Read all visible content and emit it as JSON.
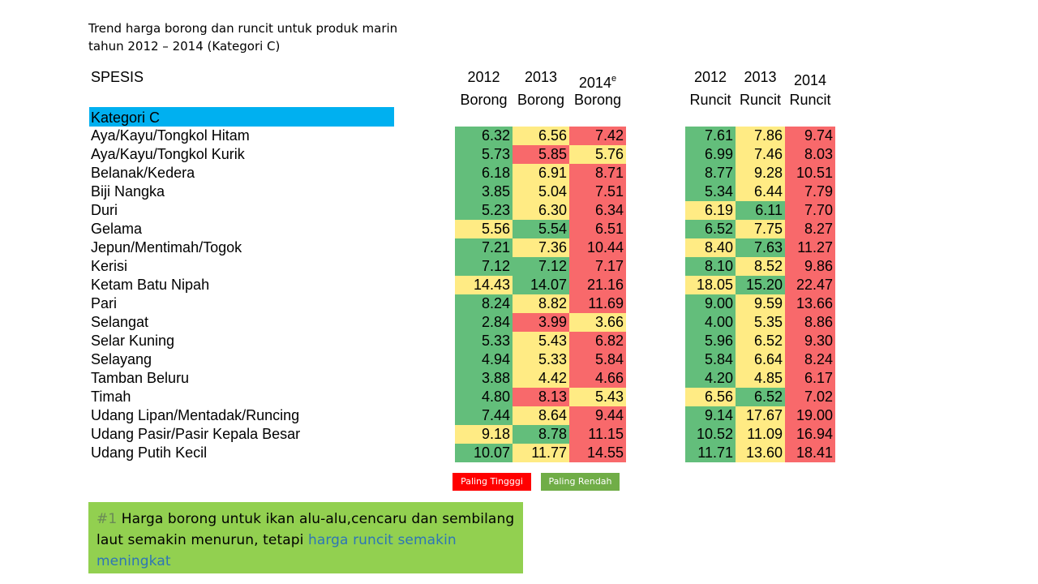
{
  "title": "Trend harga borong dan runcit untuk produk marin tahun 2012 – 2014 (Kategori C)",
  "headers": {
    "spesis": "SPESIS",
    "borong": [
      {
        "year": "2012",
        "sup": "",
        "label": "Borong"
      },
      {
        "year": "2013",
        "sup": "",
        "label": "Borong"
      },
      {
        "year": "2014",
        "sup": "e",
        "label": "Borong"
      }
    ],
    "runcit": [
      {
        "year": "2012",
        "sup": "",
        "label": "Runcit"
      },
      {
        "year": "2013",
        "sup": "",
        "label": "Runcit"
      },
      {
        "year": "2014",
        "sup": "",
        "label": "Runcit"
      }
    ]
  },
  "category": "Kategori C",
  "colors": {
    "green": "#63be7b",
    "yellow": "#ffeb84",
    "red": "#f8696b",
    "category_bar": "#00b0f0",
    "note_bg": "#92d050",
    "legend_high": "#ff0000",
    "legend_low": "#70ad47"
  },
  "rows": [
    {
      "name": "Aya/Kayu/Tongkol Hitam",
      "borong": [
        "6.32",
        "6.56",
        "7.42"
      ],
      "bc": [
        "g",
        "y",
        "r"
      ],
      "runcit": [
        "7.61",
        "7.86",
        "9.74"
      ],
      "rc": [
        "g",
        "y",
        "r"
      ]
    },
    {
      "name": "Aya/Kayu/Tongkol Kurik",
      "borong": [
        "5.73",
        "5.85",
        "5.76"
      ],
      "bc": [
        "g",
        "r",
        "y"
      ],
      "runcit": [
        "6.99",
        "7.46",
        "8.03"
      ],
      "rc": [
        "g",
        "y",
        "r"
      ]
    },
    {
      "name": "Belanak/Kedera",
      "borong": [
        "6.18",
        "6.91",
        "8.71"
      ],
      "bc": [
        "g",
        "y",
        "r"
      ],
      "runcit": [
        "8.77",
        "9.28",
        "10.51"
      ],
      "rc": [
        "g",
        "y",
        "r"
      ]
    },
    {
      "name": "Biji Nangka",
      "borong": [
        "3.85",
        "5.04",
        "7.51"
      ],
      "bc": [
        "g",
        "y",
        "r"
      ],
      "runcit": [
        "5.34",
        "6.44",
        "7.79"
      ],
      "rc": [
        "g",
        "y",
        "r"
      ]
    },
    {
      "name": "Duri",
      "borong": [
        "5.23",
        "6.30",
        "6.34"
      ],
      "bc": [
        "g",
        "y",
        "r"
      ],
      "runcit": [
        "6.19",
        "6.11",
        "7.70"
      ],
      "rc": [
        "y",
        "g",
        "r"
      ]
    },
    {
      "name": "Gelama",
      "borong": [
        "5.56",
        "5.54",
        "6.51"
      ],
      "bc": [
        "y",
        "g",
        "r"
      ],
      "runcit": [
        "6.52",
        "7.75",
        "8.27"
      ],
      "rc": [
        "g",
        "y",
        "r"
      ]
    },
    {
      "name": "Jepun/Mentimah/Togok",
      "borong": [
        "7.21",
        "7.36",
        "10.44"
      ],
      "bc": [
        "g",
        "y",
        "r"
      ],
      "runcit": [
        "8.40",
        "7.63",
        "11.27"
      ],
      "rc": [
        "y",
        "g",
        "r"
      ]
    },
    {
      "name": "Kerisi",
      "borong": [
        "7.12",
        "7.12",
        "7.17"
      ],
      "bc": [
        "g",
        "g",
        "r"
      ],
      "runcit": [
        "8.10",
        "8.52",
        "9.86"
      ],
      "rc": [
        "g",
        "y",
        "r"
      ]
    },
    {
      "name": "Ketam Batu Nipah",
      "borong": [
        "14.43",
        "14.07",
        "21.16"
      ],
      "bc": [
        "y",
        "g",
        "r"
      ],
      "runcit": [
        "18.05",
        "15.20",
        "22.47"
      ],
      "rc": [
        "y",
        "g",
        "r"
      ]
    },
    {
      "name": "Pari",
      "borong": [
        "8.24",
        "8.82",
        "11.69"
      ],
      "bc": [
        "g",
        "y",
        "r"
      ],
      "runcit": [
        "9.00",
        "9.59",
        "13.66"
      ],
      "rc": [
        "g",
        "y",
        "r"
      ]
    },
    {
      "name": "Selangat",
      "borong": [
        "2.84",
        "3.99",
        "3.66"
      ],
      "bc": [
        "g",
        "r",
        "y"
      ],
      "runcit": [
        "4.00",
        "5.35",
        "8.86"
      ],
      "rc": [
        "g",
        "y",
        "r"
      ]
    },
    {
      "name": "Selar Kuning",
      "borong": [
        "5.33",
        "5.43",
        "6.82"
      ],
      "bc": [
        "g",
        "y",
        "r"
      ],
      "runcit": [
        "5.96",
        "6.52",
        "9.30"
      ],
      "rc": [
        "g",
        "y",
        "r"
      ]
    },
    {
      "name": "Selayang",
      "borong": [
        "4.94",
        "5.33",
        "5.84"
      ],
      "bc": [
        "g",
        "y",
        "r"
      ],
      "runcit": [
        "5.84",
        "6.64",
        "8.24"
      ],
      "rc": [
        "g",
        "y",
        "r"
      ]
    },
    {
      "name": "Tamban Beluru",
      "borong": [
        "3.88",
        "4.42",
        "4.66"
      ],
      "bc": [
        "g",
        "y",
        "r"
      ],
      "runcit": [
        "4.20",
        "4.85",
        "6.17"
      ],
      "rc": [
        "g",
        "y",
        "r"
      ]
    },
    {
      "name": "Timah",
      "borong": [
        "4.80",
        "8.13",
        "5.43"
      ],
      "bc": [
        "g",
        "r",
        "y"
      ],
      "runcit": [
        "6.56",
        "6.52",
        "7.02"
      ],
      "rc": [
        "y",
        "g",
        "r"
      ]
    },
    {
      "name": "Udang Lipan/Mentadak/Runcing",
      "borong": [
        "7.44",
        "8.64",
        "9.44"
      ],
      "bc": [
        "g",
        "y",
        "r"
      ],
      "runcit": [
        "9.14",
        "17.67",
        "19.00"
      ],
      "rc": [
        "g",
        "y",
        "r"
      ]
    },
    {
      "name": "Udang Pasir/Pasir Kepala Besar",
      "borong": [
        "9.18",
        "8.78",
        "11.15"
      ],
      "bc": [
        "y",
        "g",
        "r"
      ],
      "runcit": [
        "10.52",
        "11.09",
        "16.94"
      ],
      "rc": [
        "g",
        "y",
        "r"
      ]
    },
    {
      "name": "Udang Putih Kecil",
      "borong": [
        "10.07",
        "11.77",
        "14.55"
      ],
      "bc": [
        "g",
        "y",
        "r"
      ],
      "runcit": [
        "11.71",
        "13.60",
        "18.41"
      ],
      "rc": [
        "g",
        "y",
        "r"
      ]
    }
  ],
  "legend": {
    "high": "Paling Tingggi",
    "low": "Paling Rendah"
  },
  "note": {
    "number": "#1",
    "text": " Harga borong untuk ikan alu-alu,cencaru dan sembilang laut semakin menurun, tetapi ",
    "highlight": "harga runcit semakin meningkat"
  }
}
